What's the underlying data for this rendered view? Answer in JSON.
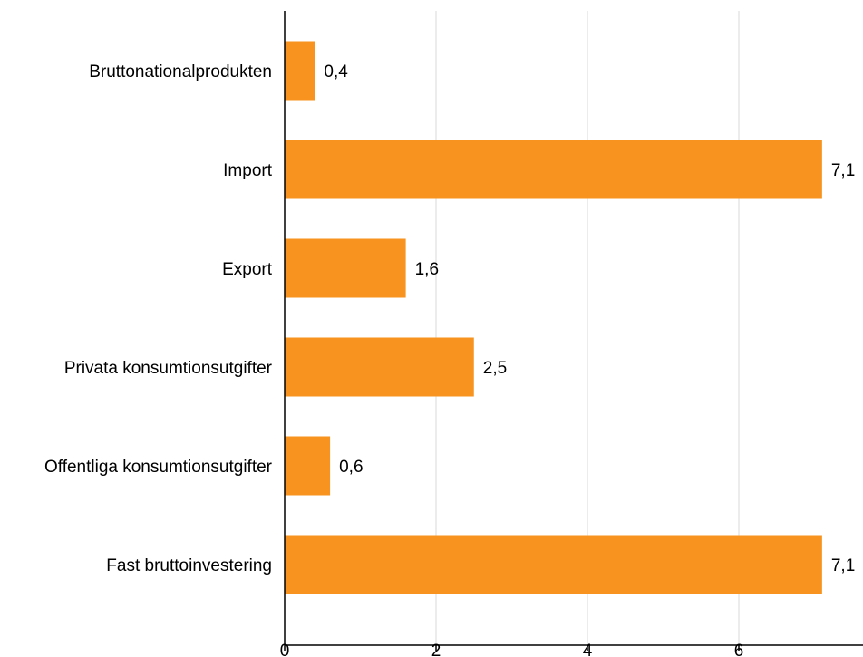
{
  "chart_data": {
    "type": "bar",
    "orientation": "horizontal",
    "categories": [
      "Bruttonationalprodukten",
      "Import",
      "Export",
      "Privata konsumtionsutgifter",
      "Offentliga konsumtionsutgifter",
      "Fast bruttoinvestering"
    ],
    "values": [
      0.4,
      7.1,
      1.6,
      2.5,
      0.6,
      7.1
    ],
    "value_labels": [
      "0,4",
      "7,1",
      "1,6",
      "2,5",
      "0,6",
      "7,1"
    ],
    "title": "",
    "xlabel": "",
    "ylabel": "",
    "xlim": [
      0,
      7.6
    ],
    "x_ticks": [
      0,
      2,
      4,
      6
    ],
    "x_tick_labels": [
      "0",
      "2",
      "4",
      "6"
    ],
    "grid": true,
    "legend": "none",
    "bar_color": "#f7931e",
    "grid_color": "#d9d9d9"
  }
}
